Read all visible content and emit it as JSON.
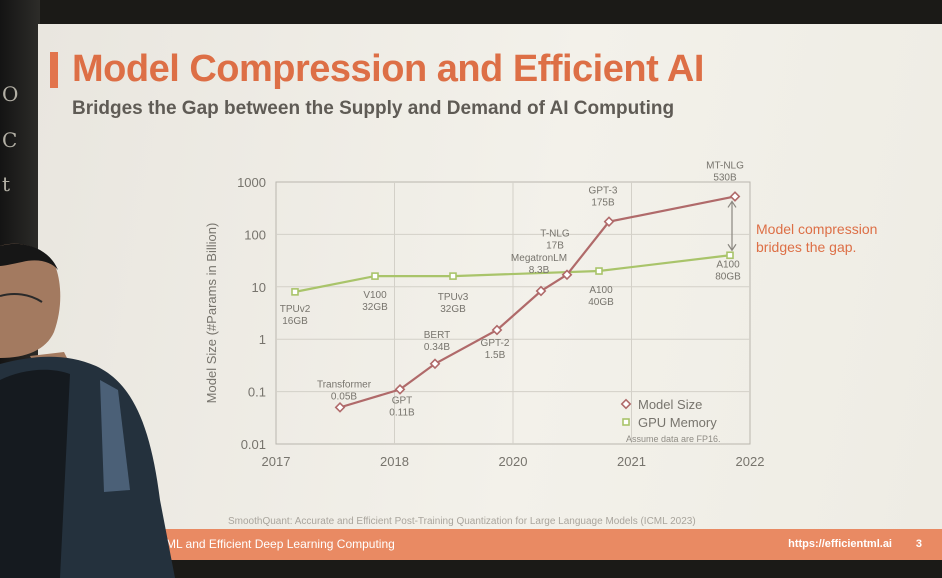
{
  "slide": {
    "title": "Model Compression and Efficient AI",
    "subtitle": "Bridges the Gap between the Supply and Demand of AI Computing",
    "citation": "SmoothQuant: Accurate and Efficient Post-Training Quantization for Large Language Models (ICML 2023)",
    "footer_left": "ML and Efficient Deep Learning Computing",
    "footer_url": "https://efficientml.ai",
    "page_number": "3"
  },
  "blackboard_glyphs": [
    "O",
    "C",
    "t"
  ],
  "colors": {
    "title": "#dd6f46",
    "footer": "#e98a63",
    "model_size": "#b06a6a",
    "gpu_memory": "#a9c46a"
  },
  "chart_data": {
    "type": "line",
    "ylabel": "Model Size (#Params in Billion)",
    "yscale": "log",
    "ylim": [
      0.01,
      1000
    ],
    "xlim": [
      2017,
      2022
    ],
    "y_ticks": [
      "0.01",
      "0.1",
      "1",
      "10",
      "100",
      "1000"
    ],
    "x_ticks": [
      "2017",
      "2018",
      "2020",
      "2021",
      "2022"
    ],
    "grid": true,
    "legend": "bottom-right",
    "legend_note": "Assume data are FP16.",
    "gap_annotation": "Model compression bridges the gap.",
    "series": [
      {
        "name": "Model Size",
        "points": [
          {
            "label": "Transformer",
            "value_label": "0.05B",
            "y": 0.05
          },
          {
            "label": "GPT",
            "value_label": "0.11B",
            "y": 0.11
          },
          {
            "label": "BERT",
            "value_label": "0.34B",
            "y": 0.34
          },
          {
            "label": "GPT-2",
            "value_label": "1.5B",
            "y": 1.5
          },
          {
            "label": "MegatronLM",
            "value_label": "8.3B",
            "y": 8.3
          },
          {
            "label": "T-NLG",
            "value_label": "17B",
            "y": 17
          },
          {
            "label": "GPT-3",
            "value_label": "175B",
            "y": 175
          },
          {
            "label": "MT-NLG",
            "value_label": "530B",
            "y": 530
          }
        ]
      },
      {
        "name": "GPU Memory",
        "points": [
          {
            "label": "TPUv2",
            "value_label": "16GB",
            "y": 8
          },
          {
            "label": "V100",
            "value_label": "32GB",
            "y": 16
          },
          {
            "label": "TPUv3",
            "value_label": "32GB",
            "y": 16
          },
          {
            "label": "A100",
            "value_label": "40GB",
            "y": 20
          },
          {
            "label": "A100",
            "value_label": "80GB",
            "y": 40
          }
        ]
      }
    ]
  }
}
